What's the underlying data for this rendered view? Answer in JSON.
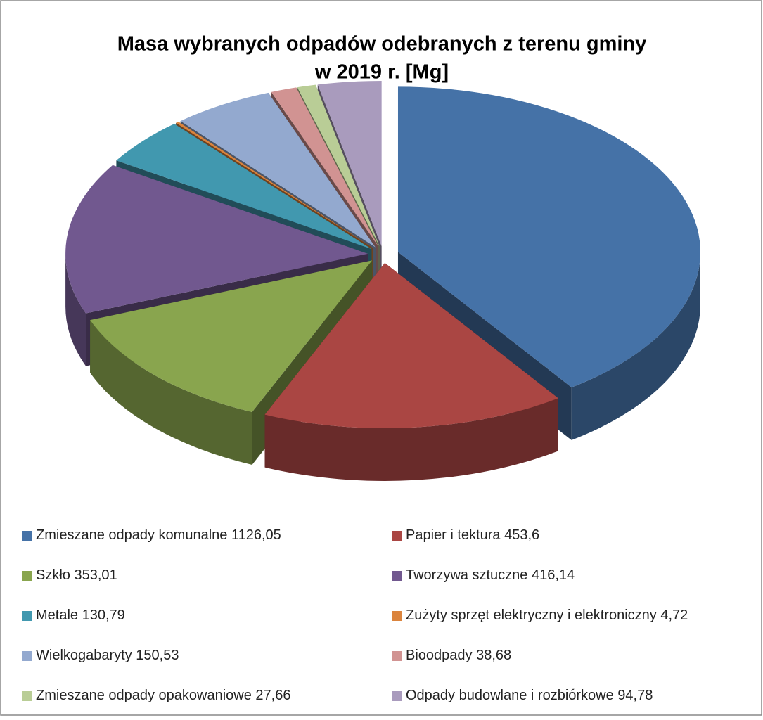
{
  "chart_data": {
    "type": "pie",
    "title": [
      "Masa wybranych odpadów odebranych z terenu gminy",
      "w 2019 r. [Mg]"
    ],
    "categories": [
      "Zmieszane odpady komunalne",
      "Papier i tektura",
      "Szkło",
      "Tworzywa sztuczne",
      "Metale",
      "Zużyty sprzęt elektryczny i elektroniczny",
      "Wielkogabaryty",
      "Bioodpady",
      "Zmieszane odpady opakowaniowe",
      "Odpady budowlane i rozbiórkowe"
    ],
    "values": [
      1126.05,
      453.6,
      353.01,
      416.14,
      130.79,
      4.72,
      150.53,
      38.68,
      27.66,
      94.78
    ],
    "value_labels": [
      "1126,05",
      "453,6",
      "353,01",
      "416,14",
      "130,79",
      "4,72",
      "150,53",
      "38,68",
      "27,66",
      "94,78"
    ],
    "colors": [
      "#4572a7",
      "#aa4643",
      "#89a54e",
      "#71588f",
      "#4198af",
      "#db843d",
      "#93a9cf",
      "#d19392",
      "#b9cd96",
      "#a99bbd"
    ],
    "legend": "bottom"
  }
}
